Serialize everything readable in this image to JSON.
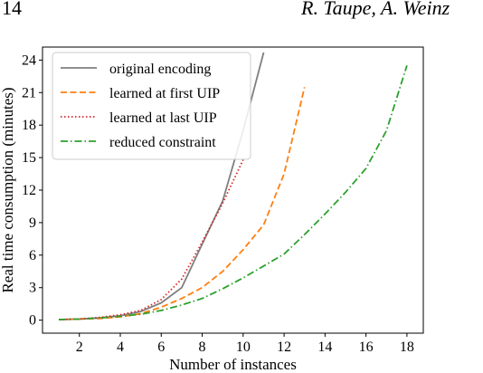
{
  "header": {
    "page_number": "14",
    "authors": "R. Taupe, A. Weinz"
  },
  "chart_data": {
    "type": "line",
    "title": "",
    "xlabel": "Number of instances",
    "ylabel": "Real time consumption (minutes)",
    "xlim": [
      0.2,
      18.8
    ],
    "ylim": [
      -1.2,
      25.2
    ],
    "xticks": [
      2,
      4,
      6,
      8,
      10,
      12,
      14,
      16,
      18
    ],
    "yticks": [
      0,
      3,
      6,
      9,
      12,
      15,
      18,
      21,
      24
    ],
    "grid": false,
    "legend_position": "top-left",
    "series": [
      {
        "name": "original encoding",
        "color": "#7f7f7f",
        "style": "solid",
        "x": [
          1,
          2,
          3,
          4,
          5,
          6,
          7,
          8,
          9,
          10,
          11
        ],
        "y": [
          0.05,
          0.1,
          0.2,
          0.4,
          0.8,
          1.6,
          3.0,
          7.0,
          11.0,
          17.5,
          24.7
        ]
      },
      {
        "name": "learned at first UIP",
        "color": "#ff7f0e",
        "style": "dashed",
        "x": [
          1,
          2,
          3,
          4,
          5,
          6,
          7,
          8,
          9,
          10,
          11,
          12,
          13
        ],
        "y": [
          0.05,
          0.1,
          0.15,
          0.3,
          0.6,
          1.2,
          2.0,
          3.0,
          4.5,
          6.5,
          8.8,
          13.5,
          21.5
        ]
      },
      {
        "name": "learned at last UIP",
        "color": "#d62728",
        "style": "dotted",
        "x": [
          1,
          2,
          3,
          4,
          5,
          6,
          7,
          8,
          9,
          10
        ],
        "y": [
          0.05,
          0.1,
          0.25,
          0.5,
          0.9,
          1.9,
          3.8,
          7.2,
          10.8,
          14.8
        ]
      },
      {
        "name": "reduced constraint",
        "color": "#2ca02c",
        "style": "dashdot",
        "x": [
          1,
          2,
          3,
          4,
          5,
          6,
          7,
          8,
          9,
          10,
          11,
          12,
          13,
          14,
          15,
          16,
          17,
          18
        ],
        "y": [
          0.05,
          0.1,
          0.2,
          0.35,
          0.55,
          0.9,
          1.4,
          2.0,
          2.9,
          3.9,
          5.0,
          6.1,
          7.9,
          9.8,
          11.8,
          14.0,
          17.5,
          23.5
        ]
      }
    ]
  }
}
